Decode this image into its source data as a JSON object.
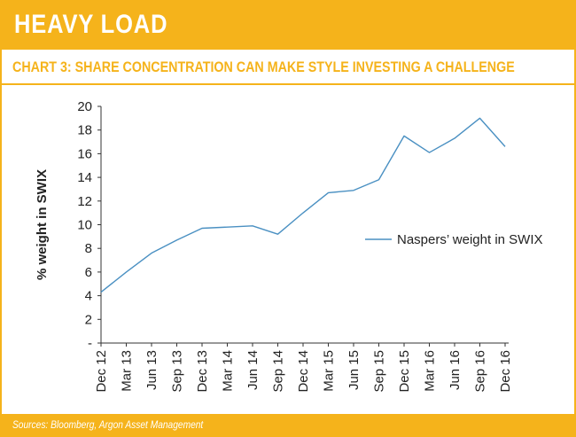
{
  "header": {
    "title": "HEAVY LOAD"
  },
  "chart_title": "CHART 3: SHARE CONCENTRATION CAN MAKE STYLE INVESTING A CHALLENGE",
  "footer": {
    "source": "Sources: Bloomberg, Argon Asset Management"
  },
  "colors": {
    "accent": "#f5b31b",
    "line": "#4a90c2"
  },
  "chart_data": {
    "type": "line",
    "title": "CHART 3: SHARE CONCENTRATION CAN MAKE STYLE INVESTING A CHALLENGE",
    "ylabel": "% weight in SWIX",
    "xlabel": "",
    "ylim": [
      0,
      20
    ],
    "y_ticks": [
      "-",
      "2",
      "4",
      "6",
      "8",
      "10",
      "12",
      "14",
      "16",
      "18",
      "20"
    ],
    "categories": [
      "Dec 12",
      "Mar 13",
      "Jun 13",
      "Sep 13",
      "Dec 13",
      "Mar 14",
      "Jun 14",
      "Sep 14",
      "Dec 14",
      "Mar 15",
      "Jun 15",
      "Sep 15",
      "Dec 15",
      "Mar 16",
      "Jun 16",
      "Sep 16",
      "Dec 16"
    ],
    "series": [
      {
        "name": "Naspers’ weight in SWIX",
        "values": [
          4.3,
          6.0,
          7.6,
          8.7,
          9.7,
          9.8,
          9.9,
          9.2,
          11.0,
          12.7,
          12.9,
          13.8,
          17.5,
          16.1,
          17.3,
          19.0,
          16.6
        ]
      }
    ],
    "legend": "right",
    "grid": false
  }
}
